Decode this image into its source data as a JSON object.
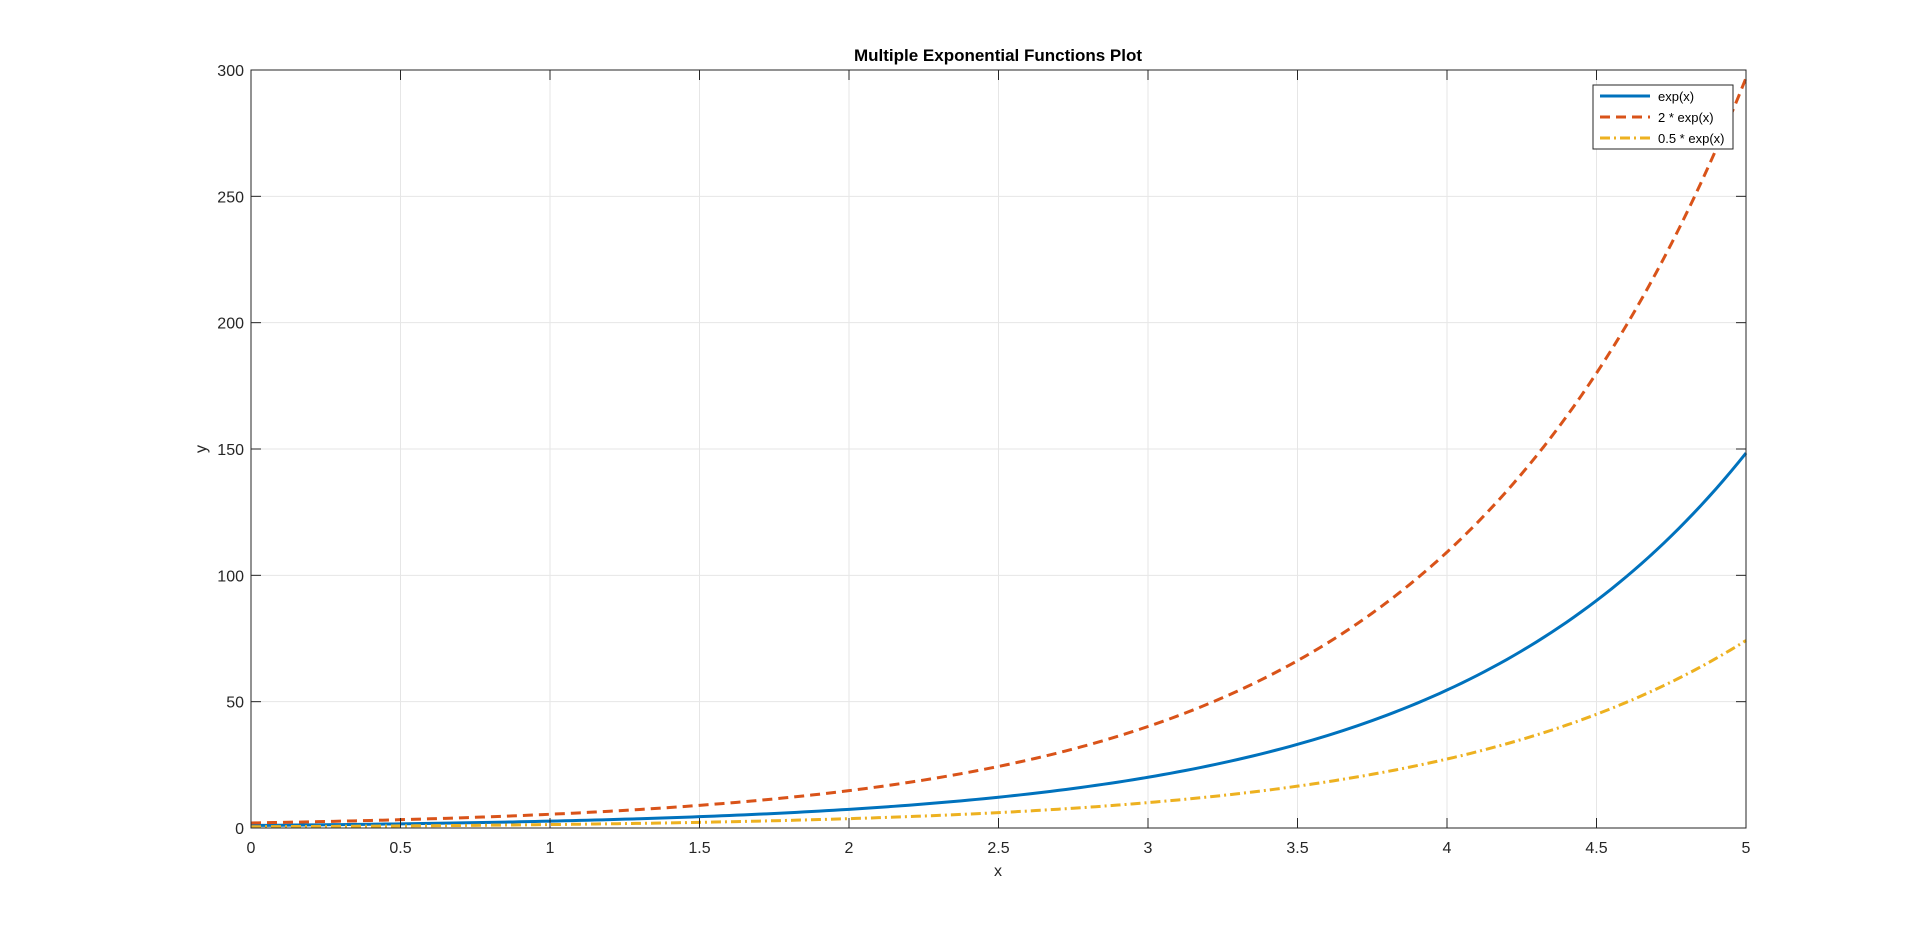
{
  "chart_data": {
    "type": "line",
    "title": "Multiple Exponential Functions Plot",
    "xlabel": "x",
    "ylabel": "y",
    "xlim": [
      0,
      5
    ],
    "ylim": [
      0,
      300
    ],
    "x_ticks": [
      0,
      0.5,
      1,
      1.5,
      2,
      2.5,
      3,
      3.5,
      4,
      4.5,
      5
    ],
    "x_tick_labels": [
      "0",
      "0.5",
      "1",
      "1.5",
      "2",
      "2.5",
      "3",
      "3.5",
      "4",
      "4.5",
      "5"
    ],
    "y_ticks": [
      0,
      50,
      100,
      150,
      200,
      250,
      300
    ],
    "y_tick_labels": [
      "0",
      "50",
      "100",
      "150",
      "200",
      "250",
      "300"
    ],
    "grid": true,
    "legend_position": "top-right",
    "x": [
      0,
      0.5,
      1,
      1.5,
      2,
      2.5,
      3,
      3.5,
      4,
      4.5,
      5
    ],
    "series": [
      {
        "name": "exp(x)",
        "color": "#0072BD",
        "style": "solid",
        "values": [
          1,
          1.65,
          2.72,
          4.48,
          7.39,
          12.18,
          20.09,
          33.12,
          54.6,
          90.02,
          148.41
        ]
      },
      {
        "name": "2 * exp(x)",
        "color": "#D95319",
        "style": "dashed",
        "values": [
          2,
          3.3,
          5.44,
          8.96,
          14.78,
          24.36,
          40.17,
          66.23,
          109.2,
          180.03,
          296.83
        ]
      },
      {
        "name": "0.5 * exp(x)",
        "color": "#EDB120",
        "style": "dashdot",
        "values": [
          0.5,
          0.82,
          1.36,
          2.24,
          3.69,
          6.09,
          10.04,
          16.56,
          27.3,
          45.01,
          74.21
        ]
      }
    ]
  }
}
